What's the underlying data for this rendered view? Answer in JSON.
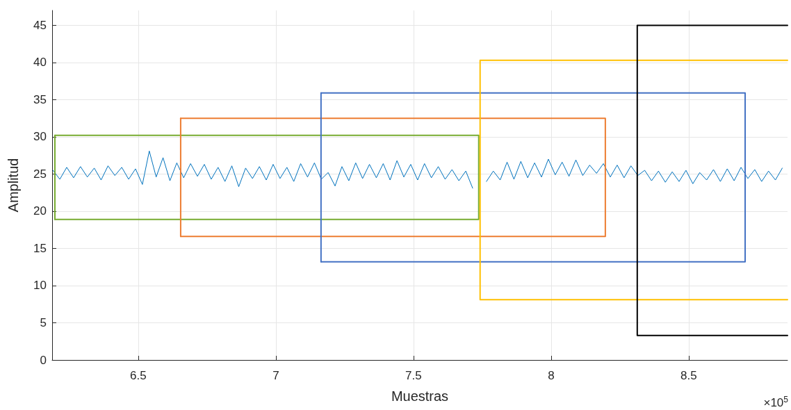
{
  "chart_data": {
    "type": "line",
    "xlabel": "Muestras",
    "ylabel": "Amplitud",
    "xlim": [
      6.187,
      8.859
    ],
    "xticks": [
      6.5,
      7,
      7.5,
      8,
      8.5
    ],
    "ylim": [
      0,
      47
    ],
    "yticks": [
      0,
      5,
      10,
      15,
      20,
      25,
      30,
      35,
      40,
      45
    ],
    "grid": true,
    "marker": "none",
    "line_style": "solid",
    "annotations": [
      "×10$^{5}$"
    ],
    "series": [
      {
        "color": "#0072bd",
        "x": [
          6.19,
          6.215,
          6.24,
          6.265,
          6.29,
          6.315,
          6.34,
          6.365,
          6.39,
          6.415,
          6.44,
          6.465,
          6.49,
          6.515,
          6.54,
          6.565,
          6.59,
          6.615,
          6.64,
          6.665,
          6.69,
          6.715,
          6.74,
          6.765,
          6.79,
          6.815,
          6.84,
          6.865,
          6.89,
          6.915,
          6.94,
          6.965,
          6.99,
          7.015,
          7.04,
          7.065,
          7.09,
          7.115,
          7.14,
          7.165,
          7.19,
          7.215,
          7.24,
          7.265,
          7.29,
          7.315,
          7.34,
          7.365,
          7.39,
          7.415,
          7.44,
          7.465,
          7.49,
          7.515,
          7.54,
          7.565,
          7.59,
          7.615,
          7.64,
          7.665,
          7.69,
          7.715,
          7.74,
          7.765,
          7.79,
          7.815,
          7.84,
          7.865,
          7.89,
          7.915,
          7.94,
          7.965,
          7.99,
          8.015,
          8.04,
          8.065,
          8.09,
          8.115,
          8.14,
          8.165,
          8.19,
          8.215,
          8.24,
          8.265,
          8.29,
          8.315,
          8.34,
          8.365,
          8.39,
          8.415,
          8.44,
          8.465,
          8.49,
          8.515,
          8.54,
          8.565,
          8.59,
          8.615,
          8.64,
          8.665,
          8.69,
          8.715,
          8.74,
          8.765,
          8.79,
          8.815,
          8.84
        ],
        "values": [
          25.5,
          24.3,
          25.9,
          24.5,
          26.0,
          24.6,
          25.8,
          24.2,
          26.1,
          24.8,
          25.9,
          24.3,
          25.7,
          23.6,
          28.1,
          24.6,
          27.2,
          24.1,
          26.5,
          24.5,
          26.4,
          24.7,
          26.3,
          24.3,
          25.9,
          24.0,
          26.1,
          23.3,
          25.8,
          24.4,
          26.0,
          24.2,
          26.3,
          24.4,
          25.9,
          24.0,
          26.4,
          24.6,
          26.5,
          24.3,
          25.2,
          23.4,
          26.0,
          24.1,
          26.5,
          24.4,
          26.3,
          24.5,
          26.4,
          24.2,
          26.8,
          24.6,
          26.3,
          24.2,
          26.4,
          24.5,
          26.0,
          24.3,
          25.6,
          24.1,
          25.4,
          23.1,
          null,
          24.0,
          25.4,
          24.2,
          26.6,
          24.3,
          26.7,
          24.5,
          26.5,
          24.6,
          27.0,
          24.9,
          26.6,
          24.7,
          26.9,
          24.8,
          26.2,
          25.1,
          26.4,
          24.6,
          26.2,
          24.5,
          26.1,
          24.8,
          25.5,
          24.1,
          25.4,
          23.9,
          25.3,
          24.0,
          25.5,
          23.7,
          25.2,
          24.2,
          25.6,
          24.0,
          25.7,
          24.1,
          25.9,
          24.4,
          25.6,
          24.0,
          25.4,
          24.2,
          25.8
        ]
      },
      {
        "color": "#77ac30",
        "x": [
          6.197,
          7.737,
          7.737,
          6.197
        ],
        "values": [
          30.2,
          30.2,
          18.9,
          18.9
        ]
      },
      {
        "color": "#77ac30",
        "x": [
          6.197,
          6.197
        ],
        "values": [
          18.9,
          30.2
        ]
      },
      {
        "color": "#ed7d31",
        "x": [
          6.654,
          8.197,
          8.197,
          6.654
        ],
        "values": [
          32.5,
          32.5,
          16.6,
          16.6
        ]
      },
      {
        "color": "#ed7d31",
        "x": [
          6.654,
          6.654
        ],
        "values": [
          16.6,
          32.5
        ]
      },
      {
        "color": "#4472c4",
        "x": [
          7.164,
          8.705,
          8.705,
          7.164
        ],
        "values": [
          35.9,
          35.9,
          13.2,
          13.2
        ]
      },
      {
        "color": "#4472c4",
        "x": [
          7.164,
          7.164
        ],
        "values": [
          13.2,
          35.9
        ]
      },
      {
        "color": "#ffc000",
        "x": [
          8.859,
          7.742,
          7.742,
          8.859
        ],
        "values": [
          40.3,
          40.3,
          8.1,
          8.1
        ]
      },
      {
        "color": "#000000",
        "x": [
          8.859,
          8.313,
          8.313,
          8.859
        ],
        "values": [
          45.0,
          45.0,
          3.3,
          3.3
        ]
      }
    ]
  }
}
